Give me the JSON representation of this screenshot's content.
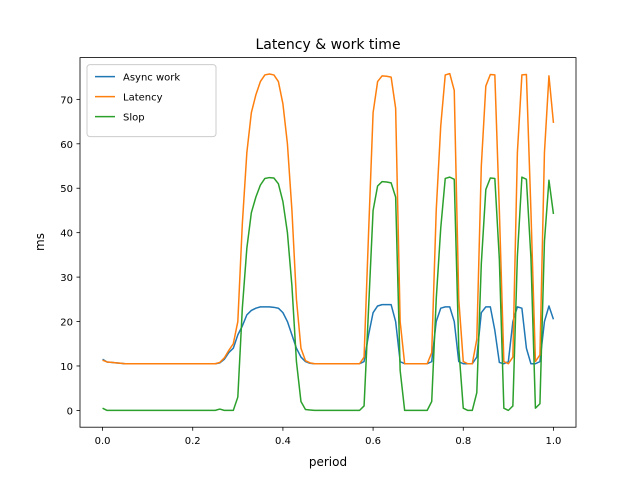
{
  "chart_data": {
    "type": "line",
    "title": "Latency & work time",
    "xlabel": "period",
    "ylabel": "ms",
    "x": [
      0,
      0.01,
      0.02,
      0.03,
      0.04,
      0.05,
      0.06,
      0.07,
      0.08,
      0.09,
      0.1,
      0.11,
      0.12,
      0.13,
      0.14,
      0.15,
      0.16,
      0.17,
      0.18,
      0.19,
      0.2,
      0.21,
      0.22,
      0.23,
      0.24,
      0.25,
      0.26,
      0.27,
      0.28,
      0.29,
      0.3,
      0.31,
      0.32,
      0.33,
      0.34,
      0.35,
      0.36,
      0.37,
      0.38,
      0.39,
      0.4,
      0.41,
      0.42,
      0.43,
      0.44,
      0.45,
      0.46,
      0.47,
      0.48,
      0.49,
      0.5,
      0.51,
      0.52,
      0.53,
      0.54,
      0.55,
      0.56,
      0.57,
      0.58,
      0.59,
      0.6,
      0.61,
      0.62,
      0.63,
      0.64,
      0.65,
      0.66,
      0.67,
      0.68,
      0.69,
      0.7,
      0.71,
      0.72,
      0.73,
      0.74,
      0.75,
      0.76,
      0.77,
      0.78,
      0.79,
      0.8,
      0.81,
      0.82,
      0.83,
      0.84,
      0.85,
      0.86,
      0.87,
      0.88,
      0.89,
      0.9,
      0.91,
      0.92,
      0.93,
      0.94,
      0.95,
      0.96,
      0.97,
      0.98,
      0.99,
      1
    ],
    "series": [
      {
        "name": "Async work",
        "color": "#1f77b4",
        "values": [
          11.5,
          10.9,
          10.8,
          10.7,
          10.6,
          10.5,
          10.5,
          10.5,
          10.5,
          10.5,
          10.5,
          10.5,
          10.5,
          10.5,
          10.5,
          10.5,
          10.5,
          10.5,
          10.5,
          10.5,
          10.5,
          10.5,
          10.5,
          10.5,
          10.5,
          10.5,
          10.7,
          11.5,
          13,
          14,
          17,
          19,
          21.5,
          22.5,
          23,
          23.3,
          23.3,
          23.3,
          23.2,
          23,
          22,
          20,
          17,
          14,
          12,
          11,
          10.6,
          10.5,
          10.5,
          10.5,
          10.5,
          10.5,
          10.5,
          10.5,
          10.5,
          10.5,
          10.5,
          10.5,
          11,
          17,
          22,
          23.5,
          23.8,
          23.8,
          23.8,
          20,
          11,
          10.5,
          10.5,
          10.5,
          10.5,
          10.5,
          10.5,
          11,
          20,
          23,
          23.3,
          23.3,
          20,
          11,
          10.5,
          10.5,
          10.5,
          12,
          22,
          23.3,
          23.3,
          18,
          10.8,
          10.5,
          11,
          20,
          23.3,
          23,
          14,
          10.5,
          10.5,
          11,
          20,
          23.5,
          20.5
        ]
      },
      {
        "name": "Latency",
        "color": "#ff7f0e",
        "values": [
          11.3,
          10.9,
          10.8,
          10.7,
          10.6,
          10.5,
          10.5,
          10.5,
          10.5,
          10.5,
          10.5,
          10.5,
          10.5,
          10.5,
          10.5,
          10.5,
          10.5,
          10.5,
          10.5,
          10.5,
          10.5,
          10.5,
          10.5,
          10.5,
          10.5,
          10.5,
          10.8,
          11.8,
          13.5,
          15,
          20,
          42,
          58,
          67,
          71,
          74,
          75.5,
          75.7,
          75.5,
          74,
          69,
          60,
          45,
          25,
          14,
          11.2,
          10.7,
          10.5,
          10.5,
          10.5,
          10.5,
          10.5,
          10.5,
          10.5,
          10.5,
          10.5,
          10.5,
          10.5,
          12,
          40,
          67,
          74,
          75.3,
          75.2,
          75,
          68,
          20,
          10.5,
          10.5,
          10.5,
          10.5,
          10.5,
          10.5,
          13,
          45,
          64,
          75.5,
          75.8,
          72,
          25,
          11,
          10.5,
          10.5,
          16,
          55,
          73,
          75.6,
          75.5,
          45,
          11,
          10.5,
          12,
          58,
          75.5,
          75.6,
          45,
          11,
          12.5,
          58,
          75.3,
          64.7
        ]
      },
      {
        "name": "Slop",
        "color": "#2ca02c",
        "values": [
          0.5,
          0,
          0,
          0,
          0,
          0,
          0,
          0,
          0,
          0,
          0,
          0,
          0,
          0,
          0,
          0,
          0,
          0,
          0,
          0,
          0,
          0,
          0,
          0,
          0,
          0,
          0.3,
          0,
          0,
          0,
          3,
          23,
          36.5,
          44.5,
          48,
          50.7,
          52.2,
          52.4,
          52.3,
          51,
          47,
          40,
          28,
          11,
          2,
          0.2,
          0.1,
          0,
          0,
          0,
          0,
          0,
          0,
          0,
          0,
          0,
          0,
          0,
          1,
          23,
          45,
          50.5,
          51.5,
          51.4,
          51.2,
          48,
          9,
          0,
          0,
          0,
          0,
          0,
          0,
          2,
          25,
          41,
          52.2,
          52.5,
          52,
          14,
          0.5,
          0,
          0,
          4,
          33,
          49.7,
          52.3,
          52.2,
          34,
          0.5,
          0,
          1,
          34.7,
          52.5,
          52,
          34.5,
          0.5,
          1.5,
          38,
          51.8,
          44.2
        ]
      }
    ],
    "xlim": [
      -0.05,
      1.05
    ],
    "ylim": [
      -3.78,
      79.4
    ],
    "xticks": [
      {
        "value": 0,
        "label": "0.0"
      },
      {
        "value": 0.2,
        "label": "0.2"
      },
      {
        "value": 0.4,
        "label": "0.4"
      },
      {
        "value": 0.6,
        "label": "0.6"
      },
      {
        "value": 0.8,
        "label": "0.8"
      },
      {
        "value": 1,
        "label": "1.0"
      }
    ],
    "yticks": [
      0,
      10,
      20,
      30,
      40,
      50,
      60,
      70
    ],
    "legend": "upper left"
  }
}
